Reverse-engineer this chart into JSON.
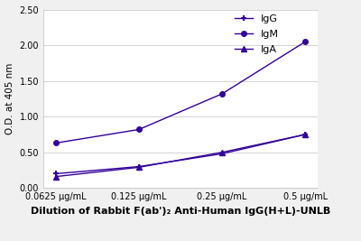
{
  "x_positions": [
    1,
    2,
    3,
    4
  ],
  "x_labels": [
    "0.0625 μg/mL",
    "0.125 μg/mL",
    "0.25 μg/mL",
    "0.5 μg/mL"
  ],
  "IgG": [
    0.2,
    0.3,
    0.48,
    0.75
  ],
  "IgM": [
    0.63,
    0.82,
    1.32,
    2.05
  ],
  "IgA": [
    0.16,
    0.29,
    0.5,
    0.75
  ],
  "series_color": "#330099",
  "ylabel": "O.D. at 405 nm",
  "xlabel": "Dilution of Rabbit F(ab')₂ Anti-Human IgG(H+L)-UNLB",
  "ylim": [
    0.0,
    2.5
  ],
  "yticks": [
    0.0,
    0.5,
    1.0,
    1.5,
    2.0,
    2.5
  ],
  "legend_labels": [
    "IgG",
    "IgM",
    "IgA"
  ],
  "axis_fontsize": 7.5,
  "tick_fontsize": 7,
  "legend_fontsize": 8,
  "xlabel_fontsize": 8
}
